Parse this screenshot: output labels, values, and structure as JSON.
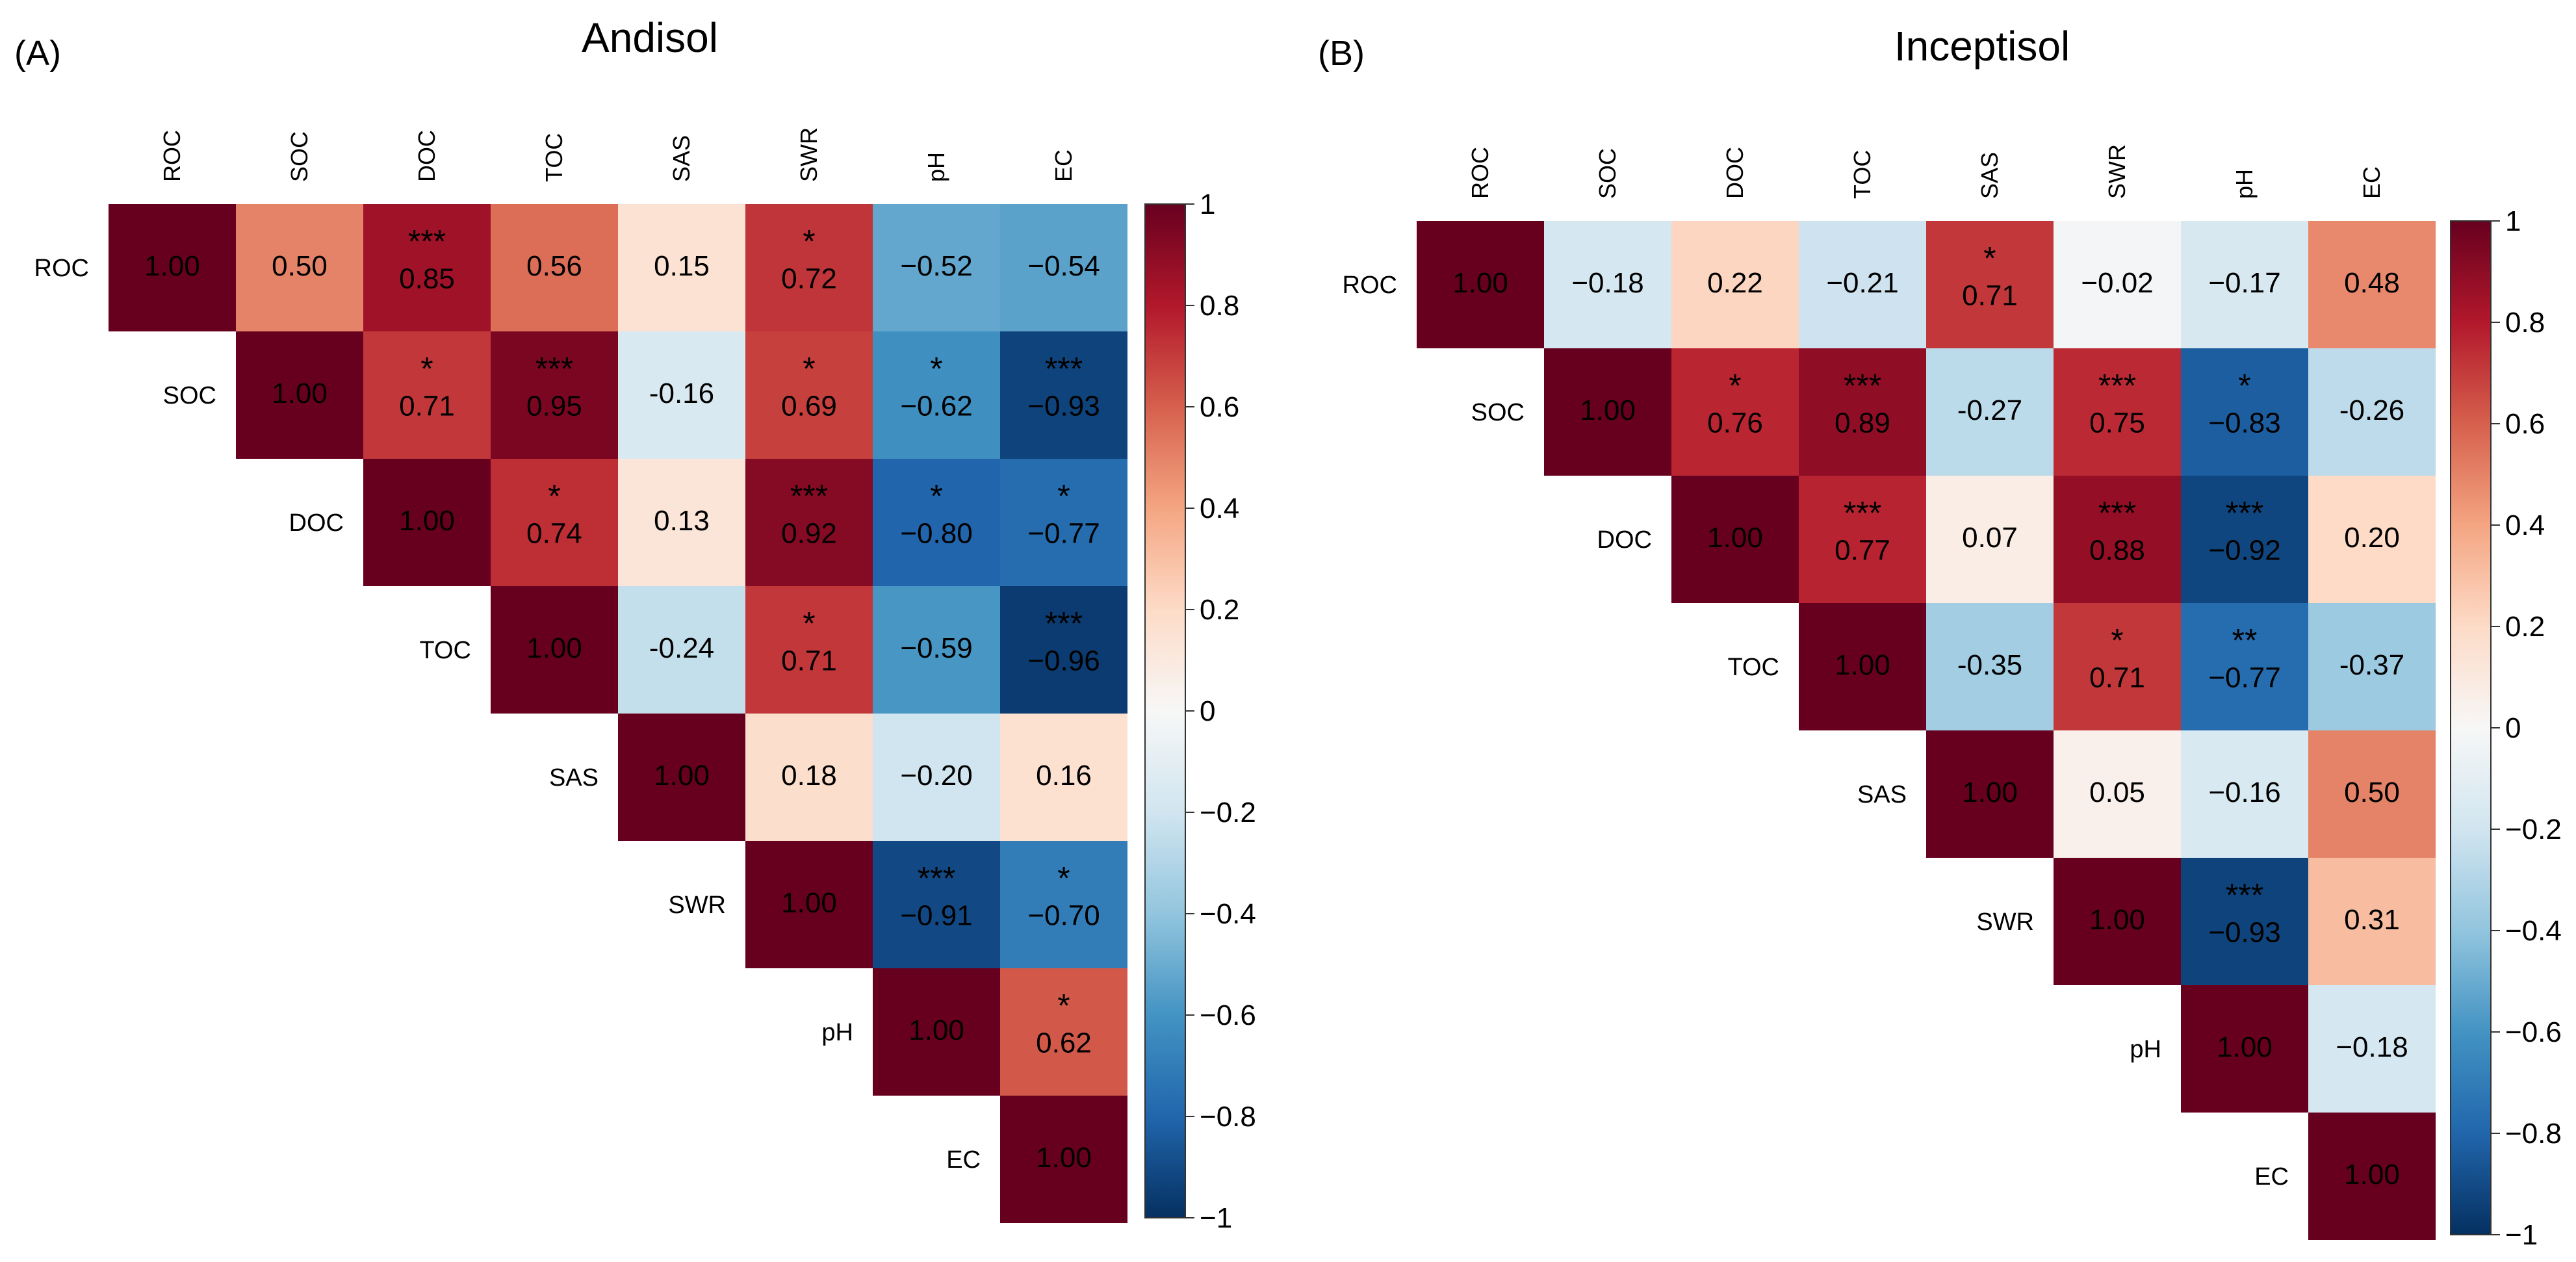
{
  "chart_data": [
    {
      "type": "heatmap",
      "panel_label": "(A)",
      "title": "Andisol",
      "variables": [
        "ROC",
        "SOC",
        "DOC",
        "TOC",
        "SAS",
        "SWR",
        "pH",
        "EC"
      ],
      "matrix": [
        [
          1.0,
          0.5,
          0.85,
          0.56,
          0.15,
          0.72,
          -0.52,
          -0.54
        ],
        [
          null,
          1.0,
          0.71,
          0.95,
          -0.16,
          0.69,
          -0.62,
          -0.93
        ],
        [
          null,
          null,
          1.0,
          0.74,
          0.13,
          0.92,
          -0.8,
          -0.77
        ],
        [
          null,
          null,
          null,
          1.0,
          -0.24,
          0.71,
          -0.59,
          -0.96
        ],
        [
          null,
          null,
          null,
          null,
          1.0,
          0.18,
          -0.2,
          0.16
        ],
        [
          null,
          null,
          null,
          null,
          null,
          1.0,
          -0.91,
          -0.7
        ],
        [
          null,
          null,
          null,
          null,
          null,
          null,
          1.0,
          0.62
        ],
        [
          null,
          null,
          null,
          null,
          null,
          null,
          null,
          1.0
        ]
      ],
      "labels": [
        [
          "1.00",
          "0.50",
          "0.85",
          "0.56",
          "0.15",
          "0.72",
          "−0.52",
          "−0.54"
        ],
        [
          null,
          "1.00",
          "0.71",
          "0.95",
          "-0.16",
          "0.69",
          "−0.62",
          "−0.93"
        ],
        [
          null,
          null,
          "1.00",
          "0.74",
          "0.13",
          "0.92",
          "−0.80",
          "−0.77"
        ],
        [
          null,
          null,
          null,
          "1.00",
          "-0.24",
          "0.71",
          "−0.59",
          "−0.96"
        ],
        [
          null,
          null,
          null,
          null,
          "1.00",
          "0.18",
          "−0.20",
          "0.16"
        ],
        [
          null,
          null,
          null,
          null,
          null,
          "1.00",
          "−0.91",
          "−0.70"
        ],
        [
          null,
          null,
          null,
          null,
          null,
          null,
          "1.00",
          "0.62"
        ],
        [
          null,
          null,
          null,
          null,
          null,
          null,
          null,
          "1.00"
        ]
      ],
      "significance": [
        [
          "",
          "",
          "***",
          "",
          "",
          "*",
          "",
          ""
        ],
        [
          null,
          "",
          "*",
          "***",
          "",
          "*",
          "*",
          "***"
        ],
        [
          null,
          null,
          "",
          "*",
          "",
          "***",
          "*",
          "*"
        ],
        [
          null,
          null,
          null,
          "",
          "",
          "*",
          "",
          "***"
        ],
        [
          null,
          null,
          null,
          null,
          "",
          "",
          "",
          ""
        ],
        [
          null,
          null,
          null,
          null,
          null,
          "",
          "***",
          "*"
        ],
        [
          null,
          null,
          null,
          null,
          null,
          null,
          "",
          "*"
        ],
        [
          null,
          null,
          null,
          null,
          null,
          null,
          null,
          ""
        ]
      ],
      "colorbar": {
        "range": [
          -1,
          1
        ],
        "ticks": [
          1,
          0.8,
          0.6,
          0.4,
          0.2,
          0,
          -0.2,
          -0.4,
          -0.6,
          -0.8,
          -1
        ],
        "tick_labels": [
          "1",
          "0.8",
          "0.6",
          "0.4",
          "0.2",
          "0",
          "−0.2",
          "−0.4",
          "−0.6",
          "−0.8",
          "−1"
        ]
      }
    },
    {
      "type": "heatmap",
      "panel_label": "(B)",
      "title": "Inceptisol",
      "variables": [
        "ROC",
        "SOC",
        "DOC",
        "TOC",
        "SAS",
        "SWR",
        "pH",
        "EC"
      ],
      "matrix": [
        [
          1.0,
          -0.18,
          0.22,
          -0.21,
          0.71,
          -0.02,
          -0.17,
          0.48
        ],
        [
          null,
          1.0,
          0.76,
          0.89,
          -0.27,
          0.75,
          -0.83,
          -0.26
        ],
        [
          null,
          null,
          1.0,
          0.77,
          0.07,
          0.88,
          -0.92,
          0.2
        ],
        [
          null,
          null,
          null,
          1.0,
          -0.35,
          0.71,
          -0.77,
          -0.37
        ],
        [
          null,
          null,
          null,
          null,
          1.0,
          0.05,
          -0.16,
          0.5
        ],
        [
          null,
          null,
          null,
          null,
          null,
          1.0,
          -0.93,
          0.31
        ],
        [
          null,
          null,
          null,
          null,
          null,
          null,
          1.0,
          -0.18
        ],
        [
          null,
          null,
          null,
          null,
          null,
          null,
          null,
          1.0
        ]
      ],
      "labels": [
        [
          "1.00",
          "−0.18",
          "0.22",
          "−0.21",
          "0.71",
          "−0.02",
          "−0.17",
          "0.48"
        ],
        [
          null,
          "1.00",
          "0.76",
          "0.89",
          "-0.27",
          "0.75",
          "−0.83",
          "-0.26"
        ],
        [
          null,
          null,
          "1.00",
          "0.77",
          "0.07",
          "0.88",
          "−0.92",
          "0.20"
        ],
        [
          null,
          null,
          null,
          "1.00",
          "-0.35",
          "0.71",
          "−0.77",
          "-0.37"
        ],
        [
          null,
          null,
          null,
          null,
          "1.00",
          "0.05",
          "−0.16",
          "0.50"
        ],
        [
          null,
          null,
          null,
          null,
          null,
          "1.00",
          "−0.93",
          "0.31"
        ],
        [
          null,
          null,
          null,
          null,
          null,
          null,
          "1.00",
          "−0.18"
        ],
        [
          null,
          null,
          null,
          null,
          null,
          null,
          null,
          "1.00"
        ]
      ],
      "significance": [
        [
          "",
          "",
          "",
          "",
          "*",
          "",
          "",
          ""
        ],
        [
          null,
          "",
          "*",
          "***",
          "",
          "***",
          "*",
          ""
        ],
        [
          null,
          null,
          "",
          "***",
          "",
          "***",
          "***",
          ""
        ],
        [
          null,
          null,
          null,
          "",
          "",
          "*",
          "**",
          ""
        ],
        [
          null,
          null,
          null,
          null,
          "",
          "",
          "",
          ""
        ],
        [
          null,
          null,
          null,
          null,
          null,
          "",
          "***",
          ""
        ],
        [
          null,
          null,
          null,
          null,
          null,
          null,
          "",
          ""
        ],
        [
          null,
          null,
          null,
          null,
          null,
          null,
          null,
          ""
        ]
      ],
      "colorbar": {
        "range": [
          -1,
          1
        ],
        "ticks": [
          1,
          0.8,
          0.6,
          0.4,
          0.2,
          0,
          -0.2,
          -0.4,
          -0.6,
          -0.8,
          -1
        ],
        "tick_labels": [
          "1",
          "0.8",
          "0.6",
          "0.4",
          "0.2",
          "0",
          "−0.2",
          "−0.4",
          "−0.6",
          "−0.8",
          "−1"
        ]
      }
    }
  ],
  "colors": {
    "low": "#2166ac",
    "mid": "#f7f7f7",
    "high": "#b2182b",
    "text": "#000000"
  }
}
